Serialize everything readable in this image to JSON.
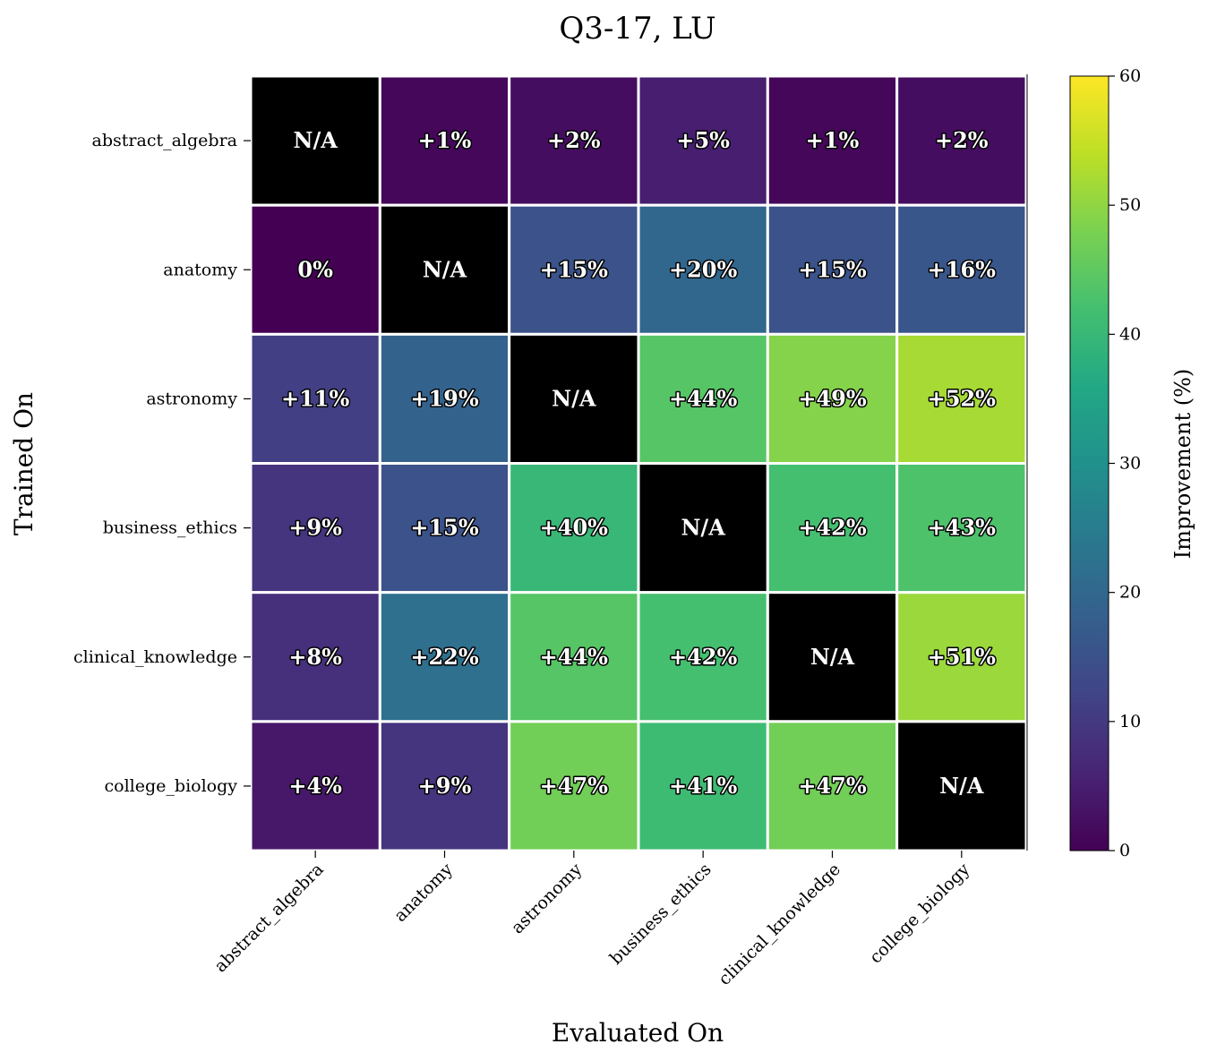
{
  "chart_data": {
    "type": "heatmap",
    "title": "Q3-17, LU",
    "xlabel": "Evaluated On",
    "ylabel": "Trained On",
    "x_categories": [
      "abstract_algebra",
      "anatomy",
      "astronomy",
      "business_ethics",
      "clinical_knowledge",
      "college_biology"
    ],
    "y_categories": [
      "abstract_algebra",
      "anatomy",
      "astronomy",
      "business_ethics",
      "clinical_knowledge",
      "college_biology"
    ],
    "values": [
      [
        null,
        1,
        2,
        5,
        1,
        2
      ],
      [
        0,
        null,
        15,
        20,
        15,
        16
      ],
      [
        11,
        19,
        null,
        44,
        49,
        52
      ],
      [
        9,
        15,
        40,
        null,
        42,
        43
      ],
      [
        8,
        22,
        44,
        42,
        null,
        51
      ],
      [
        4,
        9,
        47,
        41,
        47,
        null
      ]
    ],
    "labels": [
      [
        "N/A",
        "+1%",
        "+2%",
        "+5%",
        "+1%",
        "+2%"
      ],
      [
        "0%",
        "N/A",
        "+15%",
        "+20%",
        "+15%",
        "+16%"
      ],
      [
        "+11%",
        "+19%",
        "N/A",
        "+44%",
        "+49%",
        "+52%"
      ],
      [
        "+9%",
        "+15%",
        "+40%",
        "N/A",
        "+42%",
        "+43%"
      ],
      [
        "+8%",
        "+22%",
        "+44%",
        "+42%",
        "N/A",
        "+51%"
      ],
      [
        "+4%",
        "+9%",
        "+47%",
        "+41%",
        "+47%",
        "N/A"
      ]
    ],
    "missing_label": "N/A",
    "missing_color": "#000000",
    "colorbar": {
      "label": "Improvement (%)",
      "range": [
        0,
        60
      ],
      "ticks": [
        "0",
        "10",
        "20",
        "30",
        "40",
        "50",
        "60"
      ],
      "colormap": "viridis"
    }
  }
}
